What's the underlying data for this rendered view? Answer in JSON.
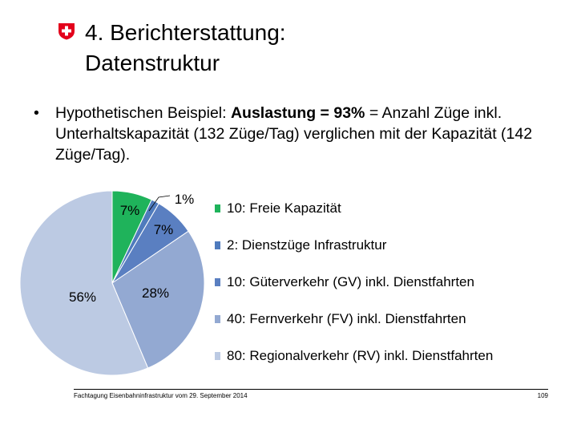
{
  "header": {
    "title_line1": "4. Berichterstattung:",
    "title_line2": "Datenstruktur"
  },
  "bullet": {
    "dot": "•",
    "text_before": "Hypothetischen Beispiel: ",
    "text_bold": "Auslastung = 93%",
    "text_after": " = Anzahl Züge inkl. Unterhaltskapazität (132 Züge/Tag) verglichen mit der Kapazität (142 Züge/Tag)."
  },
  "chart_data": {
    "type": "pie",
    "slices": [
      {
        "label": "10: Freie Kapazität",
        "value": 10,
        "percent_label": "7%",
        "color": "#1fb35b"
      },
      {
        "label": "2: Dienstzüge Infrastruktur",
        "value": 2,
        "percent_label": "1%",
        "color": "#4f7bbd"
      },
      {
        "label": "10: Güterverkehr (GV) inkl. Dienstfahrten",
        "value": 10,
        "percent_label": "7%",
        "color": "#5a7fc1"
      },
      {
        "label": "40: Fernverkehr (FV) inkl. Dienstfahrten",
        "value": 40,
        "percent_label": "28%",
        "color": "#93a9d2"
      },
      {
        "label": "80: Regionalverkehr (RV)  inkl. Dienstfahrten",
        "value": 80,
        "percent_label": "56%",
        "color": "#bccae3"
      }
    ],
    "legend_position": "right"
  },
  "footer": {
    "text": "Fachtagung Eisenbahninfrastruktur vom 29. September 2014",
    "page_number": "109"
  },
  "colors": {
    "logo_red": "#e3001b",
    "logo_cross": "#ffffff"
  },
  "icons": {
    "logo": "swiss-coat-of-arms-icon"
  }
}
